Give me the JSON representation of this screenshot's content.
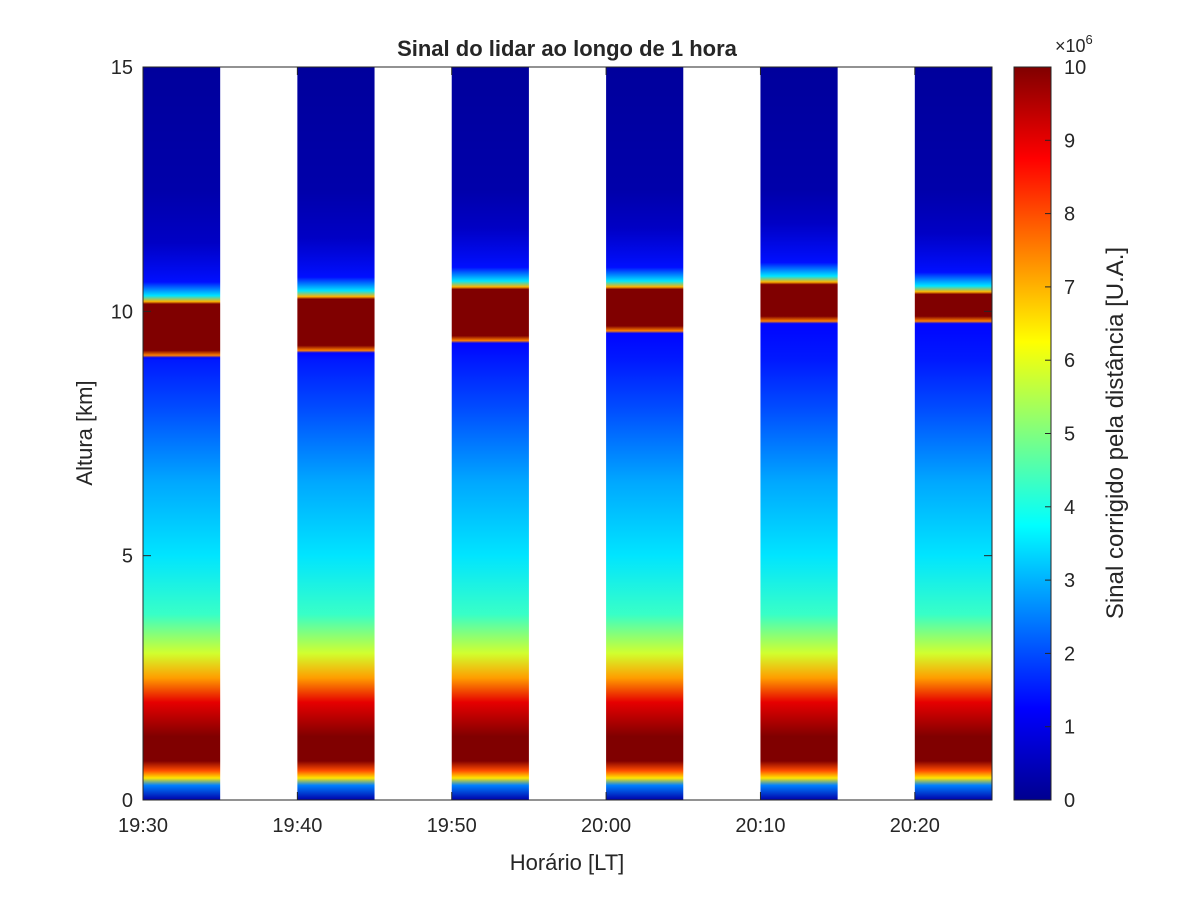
{
  "chart_data": {
    "type": "heatmap",
    "title": "Sinal do lidar ao longo de 1 hora",
    "xlabel": "Horário [LT]",
    "ylabel": "Altura [km]",
    "x_ticks": [
      "19:30",
      "19:40",
      "19:50",
      "20:00",
      "20:10",
      "20:20"
    ],
    "x_range": [
      "19:30",
      "20:25"
    ],
    "y_ticks": [
      0,
      5,
      10,
      15
    ],
    "ylim": [
      0,
      15
    ],
    "grid": false,
    "colorbar": {
      "label": "Sinal corrigido pela distância [U.A.]",
      "exponent_label": "×10",
      "exponent_power": "6",
      "ticks": [
        0,
        1,
        2,
        3,
        4,
        5,
        6,
        7,
        8,
        9,
        10
      ],
      "range": [
        0,
        10
      ],
      "colormap": "jet"
    },
    "segments": [
      {
        "start": "19:30",
        "end": "19:35",
        "cloud_base_km": 9.1,
        "cloud_top_km": 10.2
      },
      {
        "start": "19:40",
        "end": "19:45",
        "cloud_base_km": 9.2,
        "cloud_top_km": 10.3
      },
      {
        "start": "19:50",
        "end": "19:55",
        "cloud_base_km": 9.4,
        "cloud_top_km": 10.5
      },
      {
        "start": "20:00",
        "end": "20:05",
        "cloud_base_km": 9.6,
        "cloud_top_km": 10.5
      },
      {
        "start": "20:10",
        "end": "20:15",
        "cloud_base_km": 9.8,
        "cloud_top_km": 10.6
      },
      {
        "start": "20:20",
        "end": "20:25",
        "cloud_base_km": 9.8,
        "cloud_top_km": 10.4
      }
    ],
    "signal_profile": [
      {
        "altitude_km": 0.0,
        "value": 0.3
      },
      {
        "altitude_km": 0.3,
        "value": 2.5
      },
      {
        "altitude_km": 0.45,
        "value": 6.5
      },
      {
        "altitude_km": 0.6,
        "value": 8.0
      },
      {
        "altitude_km": 0.8,
        "value": 10.0
      },
      {
        "altitude_km": 1.3,
        "value": 10.0
      },
      {
        "altitude_km": 2.0,
        "value": 9.0
      },
      {
        "altitude_km": 2.5,
        "value": 7.2
      },
      {
        "altitude_km": 3.0,
        "value": 5.8
      },
      {
        "altitude_km": 3.8,
        "value": 4.3
      },
      {
        "altitude_km": 5.0,
        "value": 3.5
      },
      {
        "altitude_km": 6.5,
        "value": 2.9
      },
      {
        "altitude_km": 8.0,
        "value": 2.0
      },
      {
        "altitude_km": 9.0,
        "value": 1.5
      },
      {
        "altitude_km": 11.0,
        "value": 0.8
      },
      {
        "altitude_km": 12.5,
        "value": 0.3
      },
      {
        "altitude_km": 15.0,
        "value": 0.15
      }
    ]
  }
}
